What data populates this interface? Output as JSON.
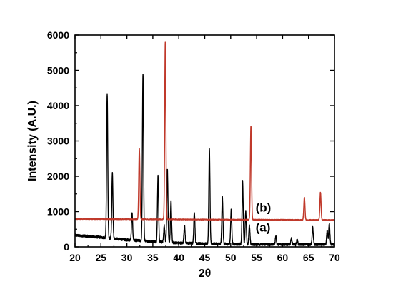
{
  "chart_data": {
    "type": "line",
    "xlabel": "2θ",
    "ylabel": "Intensity (A.U.)",
    "xlim": [
      20,
      70
    ],
    "ylim": [
      0,
      6000
    ],
    "xticks": [
      "20",
      "25",
      "30",
      "35",
      "40",
      "45",
      "50",
      "55",
      "60",
      "65",
      "70"
    ],
    "yticks": [
      "0",
      "1000",
      "2000",
      "3000",
      "4000",
      "5000",
      "6000"
    ],
    "grid": false,
    "legend": "none",
    "series": [
      {
        "name": "(a)",
        "color": "#000000",
        "baseline": [
          [
            20,
            330
          ],
          [
            25,
            270
          ],
          [
            30,
            200
          ],
          [
            35,
            150
          ],
          [
            40,
            110
          ],
          [
            45,
            90
          ],
          [
            50,
            80
          ],
          [
            55,
            70
          ],
          [
            60,
            70
          ],
          [
            65,
            70
          ],
          [
            70,
            70
          ]
        ],
        "peaks": [
          [
            26.2,
            4350
          ],
          [
            27.2,
            2100
          ],
          [
            31.0,
            950
          ],
          [
            33.1,
            4900
          ],
          [
            36.0,
            2000
          ],
          [
            37.2,
            600
          ],
          [
            37.8,
            2200
          ],
          [
            38.5,
            1300
          ],
          [
            41.1,
            600
          ],
          [
            43.0,
            1000
          ],
          [
            45.9,
            2750
          ],
          [
            48.4,
            1400
          ],
          [
            50.1,
            1050
          ],
          [
            52.3,
            1850
          ],
          [
            52.9,
            1000
          ],
          [
            53.6,
            600
          ],
          [
            58.7,
            300
          ],
          [
            61.7,
            250
          ],
          [
            62.8,
            200
          ],
          [
            65.8,
            550
          ],
          [
            68.6,
            450
          ],
          [
            69.0,
            650
          ]
        ]
      },
      {
        "name": "(b)",
        "color": "#c0392b",
        "baseline": [
          [
            20,
            790
          ],
          [
            70,
            760
          ]
        ],
        "peaks": [
          [
            32.4,
            2780
          ],
          [
            37.4,
            5800
          ],
          [
            53.9,
            3420
          ],
          [
            64.2,
            1400
          ],
          [
            67.3,
            1550
          ]
        ]
      }
    ],
    "annotations": [
      {
        "text": "(b)",
        "x": 54.8,
        "y": 1000
      },
      {
        "text": "(a)",
        "x": 54.8,
        "y": 430
      }
    ]
  }
}
